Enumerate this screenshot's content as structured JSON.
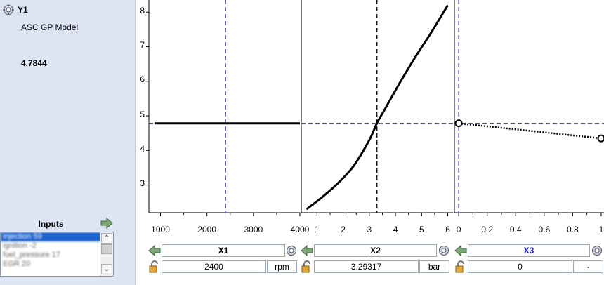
{
  "response": {
    "name": "Y1",
    "model": "ASC GP Model",
    "value": "4.7844"
  },
  "inputs_panel": {
    "label": "Inputs",
    "items": [
      "injection 59",
      "ignition -2",
      "fuel_pressure 17",
      "EGR 20"
    ]
  },
  "y_axis": {
    "ticks": [
      "8",
      "7",
      "6",
      "5",
      "4",
      "3"
    ],
    "ylim": [
      2.2,
      8.35
    ]
  },
  "colors": {
    "crosshair": "#4444ee",
    "curve": "#000000",
    "panel_bg": "#dce5f1"
  },
  "factors": [
    {
      "name": "X1",
      "value": "2400",
      "unit": "rpm",
      "ticks": [
        "1000",
        "2000",
        "3000",
        "4000"
      ],
      "name_color": "#000000"
    },
    {
      "name": "X2",
      "value": "3.29317",
      "unit": "bar",
      "ticks": [
        "1",
        "2",
        "3",
        "4",
        "5",
        "6"
      ],
      "name_color": "#000000"
    },
    {
      "name": "X3",
      "value": "0",
      "unit": "-",
      "ticks": [
        "0",
        "0.2",
        "0.4",
        "0.6",
        "0.8",
        "1"
      ],
      "name_color": "#1a1aff"
    }
  ],
  "chart_data": [
    {
      "type": "line",
      "series": [
        {
          "x": [
            870,
            4000
          ],
          "y": [
            4.7844,
            4.7844
          ]
        }
      ],
      "xlim": [
        750,
        4000
      ],
      "crosshair_x": 2400,
      "crosshair_y": 4.7844
    },
    {
      "type": "line",
      "series": [
        {
          "x": [
            0.6,
            1.2,
            1.8,
            2.4,
            3.0,
            3.29,
            3.6,
            4.2,
            4.8,
            5.4,
            6.0
          ],
          "y": [
            2.3,
            2.65,
            3.05,
            3.55,
            4.3,
            4.7844,
            5.2,
            6.0,
            6.75,
            7.45,
            8.2
          ]
        }
      ],
      "xlim": [
        0.4,
        6.2
      ],
      "crosshair_x": 3.29317,
      "crosshair_y": 4.7844
    },
    {
      "type": "line",
      "series": [
        {
          "x": [
            0,
            1
          ],
          "y": [
            4.7844,
            4.35
          ],
          "style": "dotted"
        }
      ],
      "xlim": [
        -0.03,
        1.02
      ],
      "crosshair_x": 0,
      "crosshair_y": 4.7844
    }
  ]
}
